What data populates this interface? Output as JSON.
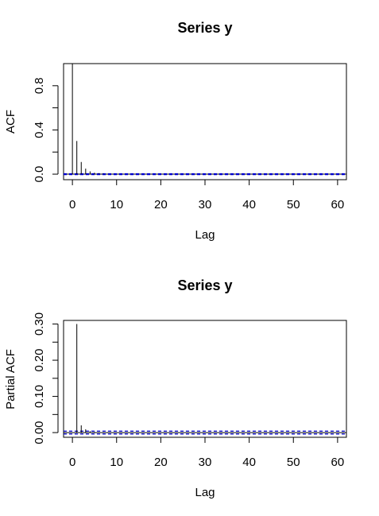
{
  "chart_data": [
    {
      "type": "bar",
      "title": "Series  y",
      "xlabel": "Lag",
      "ylabel": "ACF",
      "xlim": [
        -2,
        62
      ],
      "ylim": [
        -0.05,
        1.0
      ],
      "xticks": [
        0,
        10,
        20,
        30,
        40,
        50,
        60
      ],
      "yticks": [
        0.0,
        0.4,
        0.8
      ],
      "ytick_labels": [
        "0.0",
        "0.4",
        "0.8"
      ],
      "lags": [
        0,
        1,
        2,
        3,
        4,
        5,
        6,
        7,
        8
      ],
      "values": [
        1.0,
        0.3,
        0.11,
        0.05,
        0.025,
        0.013,
        0.008,
        0.005,
        0.003
      ],
      "confidence_band": 0.004,
      "colors": {
        "bars": "#000000",
        "band": "#0000cd",
        "zero": "#000000"
      }
    },
    {
      "type": "bar",
      "title": "Series  y",
      "xlabel": "Lag",
      "ylabel": "Partial ACF",
      "xlim": [
        -2,
        62
      ],
      "ylim": [
        -0.013,
        0.31
      ],
      "xticks": [
        0,
        10,
        20,
        30,
        40,
        50,
        60
      ],
      "yticks": [
        0.0,
        0.1,
        0.2,
        0.3
      ],
      "ytick_labels": [
        "0.00",
        "0.10",
        "0.20",
        "0.30"
      ],
      "lags": [
        1,
        2,
        3,
        4,
        5,
        6,
        7,
        8
      ],
      "values": [
        0.3,
        0.02,
        0.009,
        0.004,
        0.002,
        0.001,
        0.001,
        0.001
      ],
      "confidence_band": 0.004,
      "colors": {
        "bars": "#000000",
        "band": "#0000cd",
        "zero": "#000000"
      }
    }
  ]
}
